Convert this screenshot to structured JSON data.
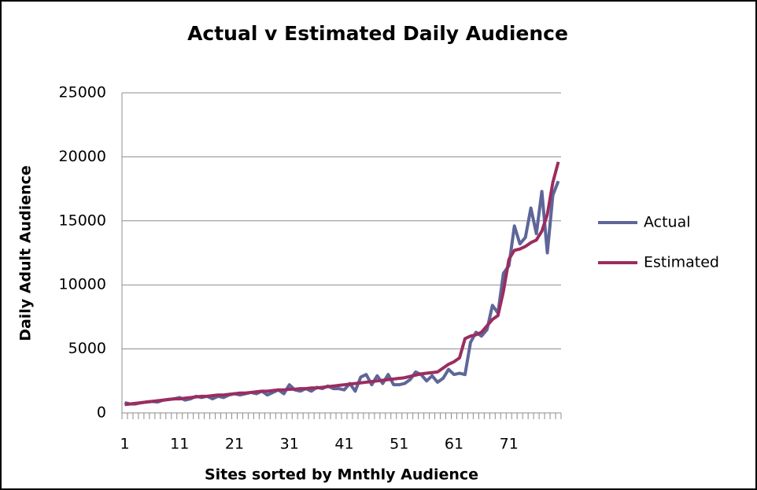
{
  "chart_data": {
    "type": "line",
    "title": "Actual v Estimated Daily Audience",
    "x_label": "Sites sorted by Mnthly Audience",
    "y_label": "Daily Adult Audience",
    "categories": [
      "1",
      null,
      null,
      null,
      null,
      null,
      null,
      null,
      null,
      null,
      "11",
      null,
      null,
      null,
      null,
      null,
      null,
      null,
      null,
      null,
      "21",
      null,
      null,
      null,
      null,
      null,
      null,
      null,
      null,
      null,
      "31",
      null,
      null,
      null,
      null,
      null,
      null,
      null,
      null,
      null,
      "41",
      null,
      null,
      null,
      null,
      null,
      null,
      null,
      null,
      null,
      "51",
      null,
      null,
      null,
      null,
      null,
      null,
      null,
      null,
      null,
      "61",
      null,
      null,
      null,
      null,
      null,
      null,
      null,
      null,
      null,
      "71",
      null,
      null,
      null,
      null,
      null,
      null,
      null,
      null,
      null
    ],
    "series": [
      {
        "name": "Actual",
        "color": "#5e6699",
        "values": [
          800,
          700,
          700,
          800,
          850,
          900,
          850,
          1000,
          1050,
          1100,
          1200,
          1000,
          1100,
          1300,
          1200,
          1300,
          1100,
          1300,
          1200,
          1400,
          1500,
          1400,
          1500,
          1600,
          1500,
          1700,
          1400,
          1600,
          1800,
          1500,
          2200,
          1800,
          1700,
          1900,
          1700,
          2000,
          1900,
          2100,
          1900,
          1900,
          1800,
          2300,
          1700,
          2800,
          3000,
          2200,
          2900,
          2300,
          3000,
          2200,
          2200,
          2300,
          2600,
          3200,
          3000,
          2500,
          2900,
          2400,
          2700,
          3400,
          3000,
          3100,
          3000,
          5500,
          6300,
          6000,
          6500,
          8400,
          7800,
          10900,
          11500,
          14600,
          13200,
          13700,
          16000,
          14000,
          17300,
          12500,
          17000,
          18100
        ]
      },
      {
        "name": "Estimated",
        "color": "#9b2d5f",
        "values": [
          650,
          700,
          750,
          800,
          850,
          900,
          950,
          1000,
          1050,
          1100,
          1100,
          1150,
          1200,
          1250,
          1300,
          1300,
          1350,
          1400,
          1400,
          1450,
          1500,
          1550,
          1550,
          1600,
          1650,
          1700,
          1700,
          1750,
          1800,
          1800,
          1850,
          1850,
          1900,
          1900,
          1950,
          1950,
          2000,
          2050,
          2100,
          2150,
          2200,
          2250,
          2300,
          2350,
          2400,
          2450,
          2500,
          2550,
          2600,
          2650,
          2700,
          2750,
          2850,
          2950,
          3050,
          3100,
          3150,
          3200,
          3500,
          3800,
          4000,
          4300,
          5800,
          6000,
          6100,
          6300,
          6800,
          7300,
          7600,
          9500,
          12000,
          12700,
          12800,
          13000,
          13300,
          13500,
          14200,
          15500,
          18000,
          19600
        ]
      }
    ],
    "ylim": [
      0,
      25000
    ],
    "yticks": [
      0,
      5000,
      10000,
      15000,
      20000,
      25000
    ],
    "grid": true,
    "legend": "right"
  }
}
